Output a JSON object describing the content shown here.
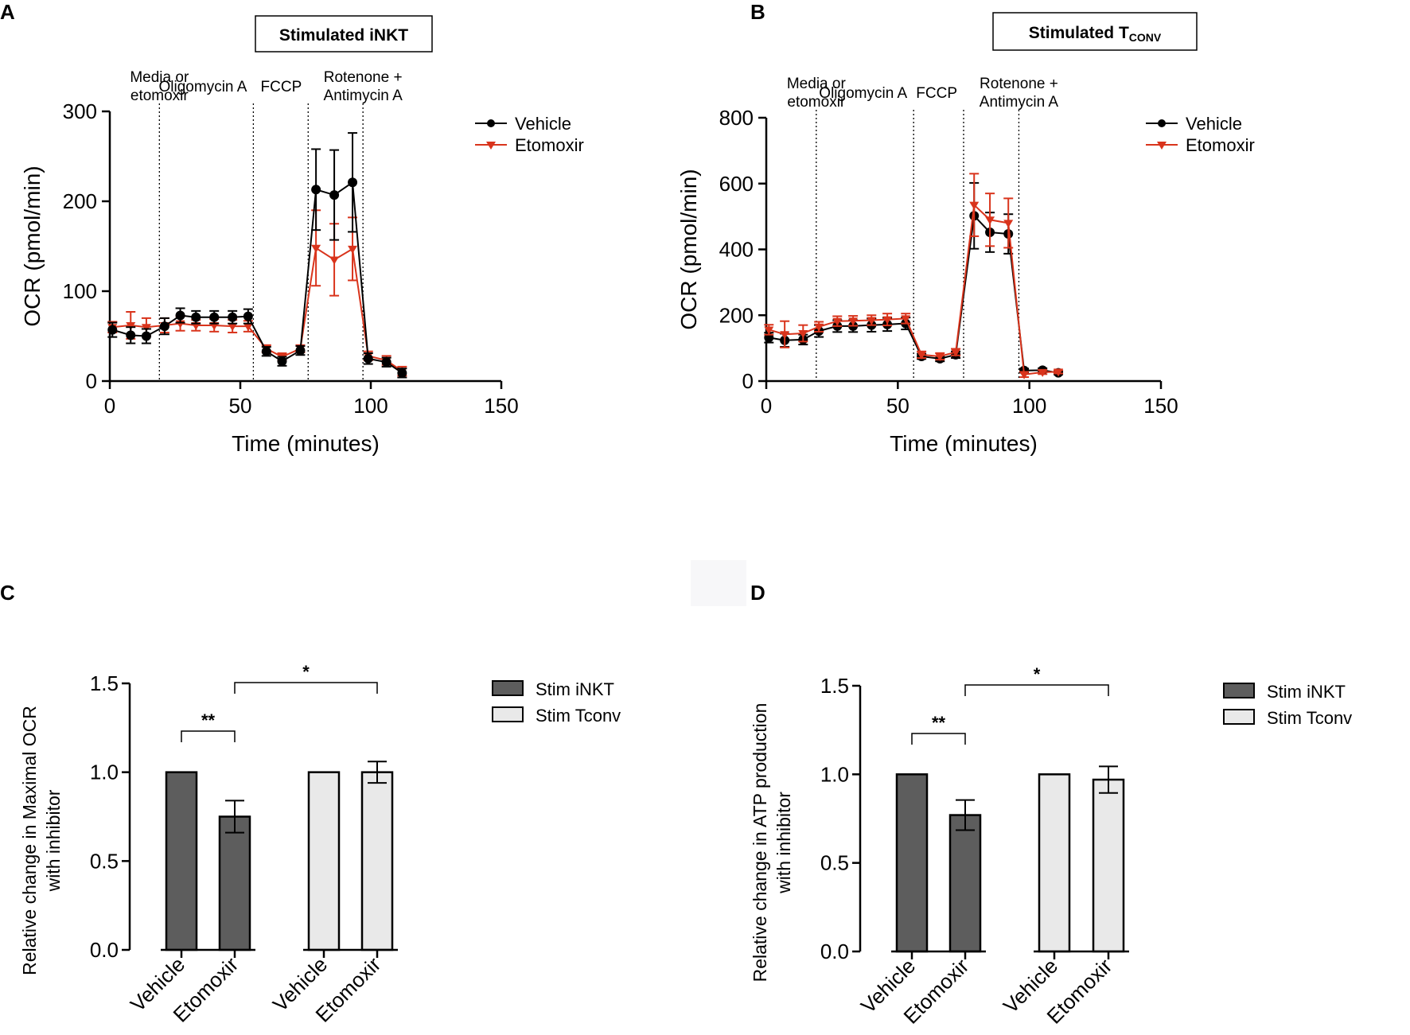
{
  "panels": {
    "A": {
      "letter": "A",
      "title": "Stimulated iNKT",
      "events": [
        {
          "time": 19,
          "label_line1": "Media or",
          "label_line2": "etomoxir"
        },
        {
          "time": 55,
          "label_line1": "Oligomycin A",
          "label_line2": ""
        },
        {
          "time": 76,
          "label_line1": "FCCP",
          "label_line2": ""
        },
        {
          "time": 97,
          "label_line1": "Rotenone +",
          "label_line2": "Antimycin A"
        }
      ]
    },
    "B": {
      "letter": "B",
      "title_main": "Stimulated T",
      "title_sub": "CONV",
      "events": [
        {
          "time": 19,
          "label_line1": "Media or",
          "label_line2": "etomoxir"
        },
        {
          "time": 56,
          "label_line1": "Oligomycin A",
          "label_line2": ""
        },
        {
          "time": 75,
          "label_line1": "FCCP",
          "label_line2": ""
        },
        {
          "time": 96,
          "label_line1": "Rotenone +",
          "label_line2": "Antimycin A"
        }
      ]
    },
    "C": {
      "letter": "C"
    },
    "D": {
      "letter": "D"
    }
  },
  "colors": {
    "vehicle": "#000000",
    "etomoxir": "#d9341c",
    "stim_inkt": "#5d5d5d",
    "stim_tconv": "#e9e9e9"
  },
  "chart_data": [
    {
      "id": "A",
      "type": "line",
      "title": "Stimulated iNKT",
      "xlabel": "Time (minutes)",
      "ylabel": "OCR (pmol/min)",
      "xlim": [
        0,
        150
      ],
      "ylim": [
        0,
        300
      ],
      "xticks": [
        0,
        50,
        100,
        150
      ],
      "yticks": [
        0,
        100,
        200,
        300
      ],
      "x": [
        1,
        8,
        14,
        21,
        27,
        33,
        40,
        47,
        53,
        60,
        66,
        73,
        79,
        86,
        93,
        99,
        106,
        112
      ],
      "series": [
        {
          "name": "Vehicle",
          "marker": "circle",
          "values": [
            57,
            51,
            50,
            61,
            73,
            71,
            71,
            71,
            72,
            33,
            22,
            34,
            213,
            207,
            221,
            25,
            21,
            9
          ],
          "errors": [
            8,
            9,
            8,
            9,
            8,
            7,
            7,
            7,
            8,
            5,
            5,
            5,
            45,
            50,
            55,
            6,
            5,
            5
          ]
        },
        {
          "name": "Etomoxir",
          "marker": "triangle-down",
          "values": [
            60,
            62,
            60,
            62,
            64,
            62,
            62,
            61,
            61,
            36,
            27,
            36,
            148,
            135,
            147,
            28,
            23,
            11
          ],
          "errors": [
            6,
            15,
            10,
            8,
            8,
            6,
            7,
            7,
            6,
            4,
            4,
            4,
            42,
            40,
            35,
            5,
            5,
            5
          ]
        }
      ]
    },
    {
      "id": "B",
      "type": "line",
      "title": "Stimulated TCONV",
      "xlabel": "Time (minutes)",
      "ylabel": "OCR (pmol/min)",
      "xlim": [
        0,
        150
      ],
      "ylim": [
        0,
        800
      ],
      "xticks": [
        0,
        50,
        100,
        150
      ],
      "yticks": [
        0,
        200,
        400,
        600,
        800
      ],
      "x": [
        1,
        7,
        14,
        20,
        27,
        33,
        40,
        46,
        53,
        59,
        66,
        72,
        79,
        85,
        92,
        98,
        105,
        111
      ],
      "series": [
        {
          "name": "Vehicle",
          "marker": "circle",
          "values": [
            132,
            124,
            126,
            152,
            167,
            167,
            170,
            172,
            175,
            75,
            68,
            80,
            502,
            452,
            447,
            32,
            33,
            25
          ],
          "errors": [
            15,
            20,
            15,
            18,
            18,
            18,
            20,
            20,
            18,
            8,
            8,
            10,
            100,
            60,
            60,
            6,
            6,
            5
          ]
        },
        {
          "name": "Etomoxir",
          "marker": "triangle-down",
          "values": [
            156,
            142,
            145,
            165,
            182,
            183,
            185,
            187,
            190,
            80,
            75,
            88,
            535,
            490,
            480,
            20,
            27,
            28
          ],
          "errors": [
            15,
            40,
            25,
            15,
            15,
            15,
            15,
            18,
            15,
            10,
            10,
            10,
            95,
            80,
            75,
            8,
            6,
            5
          ]
        }
      ]
    },
    {
      "id": "C",
      "type": "bar",
      "ylabel_line1": "Relative change in Maximal OCR",
      "ylabel_line2": "with inhibitor",
      "ylim": [
        0,
        1.5
      ],
      "yticks": [
        "0.0",
        "0.5",
        "1.0",
        "1.5"
      ],
      "categories": [
        "Vehicle",
        "Etomoxir",
        "Vehicle",
        "Etomoxir"
      ],
      "groups": [
        "Stim iNKT",
        "Stim iNKT",
        "Stim Tconv",
        "Stim Tconv"
      ],
      "values": [
        1.0,
        0.75,
        1.0,
        1.0
      ],
      "errors": [
        0,
        0.09,
        0,
        0.06
      ],
      "legend": [
        "Stim iNKT",
        "Stim Tconv"
      ],
      "significance": [
        {
          "from": 0,
          "to": 1,
          "label": "**"
        },
        {
          "from": 1,
          "to": 3,
          "label": "*"
        }
      ]
    },
    {
      "id": "D",
      "type": "bar",
      "ylabel_line1": "Relative change in ATP production",
      "ylabel_line2": "with inhibitor",
      "ylim": [
        0,
        1.5
      ],
      "yticks": [
        "0.0",
        "0.5",
        "1.0",
        "1.5"
      ],
      "categories": [
        "Vehicle",
        "Etomoxir",
        "Vehicle",
        "Etomoxir"
      ],
      "groups": [
        "Stim iNKT",
        "Stim iNKT",
        "Stim Tconv",
        "Stim Tconv"
      ],
      "values": [
        1.0,
        0.77,
        1.0,
        0.97
      ],
      "errors": [
        0,
        0.085,
        0,
        0.075
      ],
      "legend": [
        "Stim iNKT",
        "Stim Tconv"
      ],
      "significance": [
        {
          "from": 0,
          "to": 1,
          "label": "**"
        },
        {
          "from": 1,
          "to": 3,
          "label": "*"
        }
      ]
    }
  ]
}
